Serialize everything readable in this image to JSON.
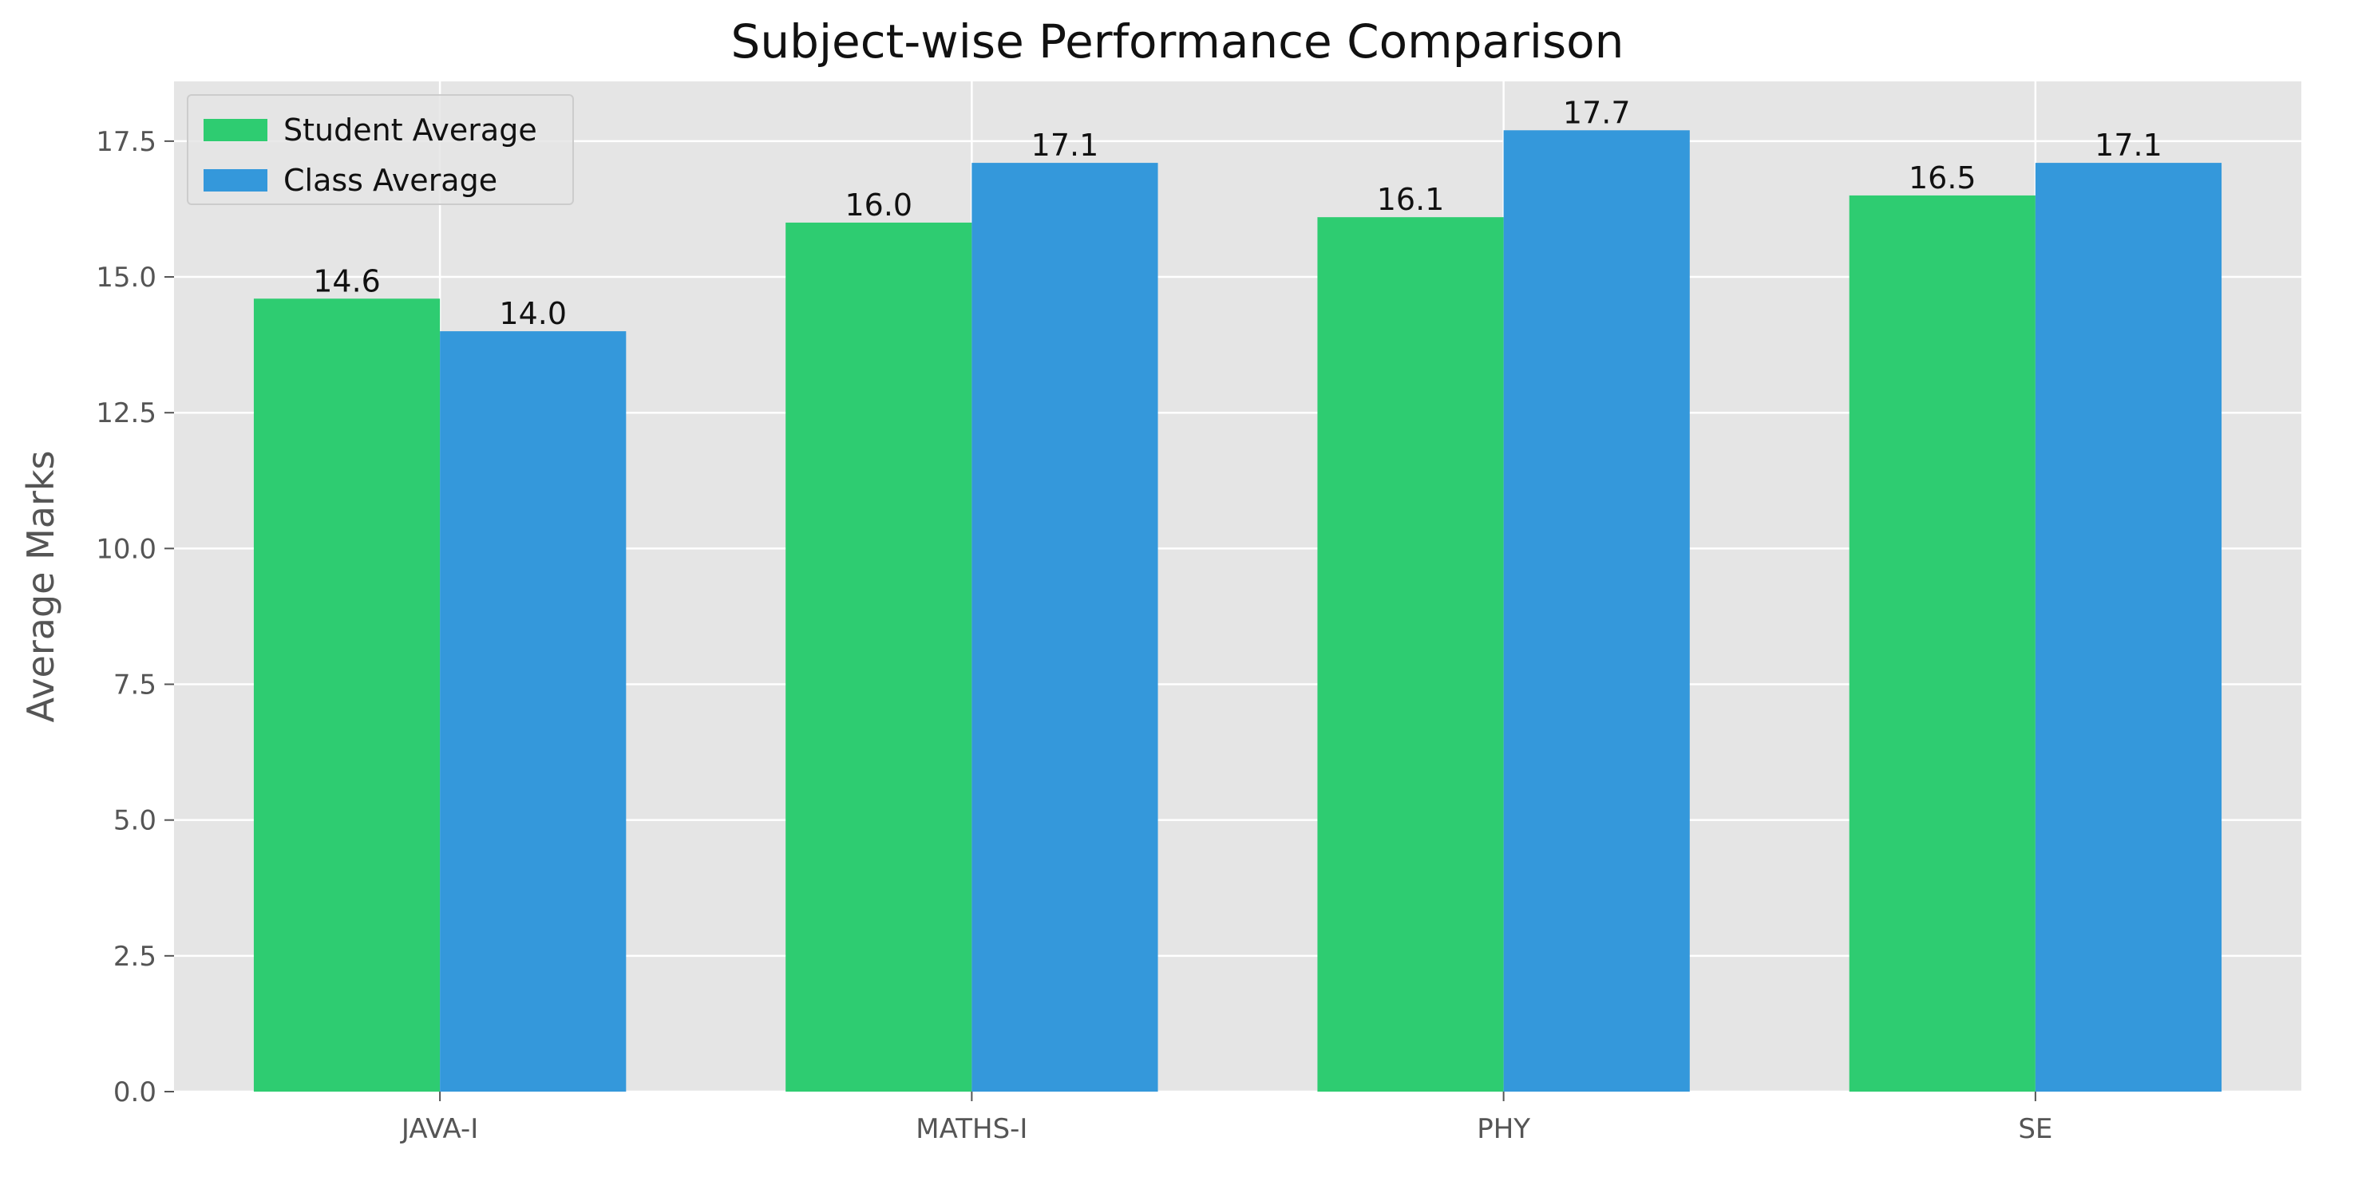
{
  "chart_data": {
    "type": "bar",
    "title": "Subject-wise Performance Comparison",
    "xlabel": "",
    "ylabel": "Average Marks",
    "categories": [
      "JAVA-I",
      "MATHS-I",
      "PHY",
      "SE"
    ],
    "series": [
      {
        "name": "Student Average",
        "values": [
          14.6,
          16.0,
          16.1,
          16.5
        ],
        "color": "#2ecc71"
      },
      {
        "name": "Class Average",
        "values": [
          14.0,
          17.1,
          17.7,
          17.1
        ],
        "color": "#3498db"
      }
    ],
    "value_labels": {
      "Student Average": [
        "14.6",
        "16.0",
        "16.1",
        "16.5"
      ],
      "Class Average": [
        "14.0",
        "17.1",
        "17.7",
        "17.1"
      ]
    },
    "ylim": [
      0,
      18.6
    ],
    "yticks": [
      0,
      2.5,
      5,
      7.5,
      10,
      12.5,
      15,
      17.5
    ],
    "ytick_labels": [
      "0.0",
      "2.5",
      "5.0",
      "7.5",
      "10.0",
      "12.5",
      "15.0",
      "17.5"
    ],
    "grid": true,
    "legend_position": "top-left",
    "plot_background": "#e5e5e5",
    "grid_color": "#ffffff"
  }
}
